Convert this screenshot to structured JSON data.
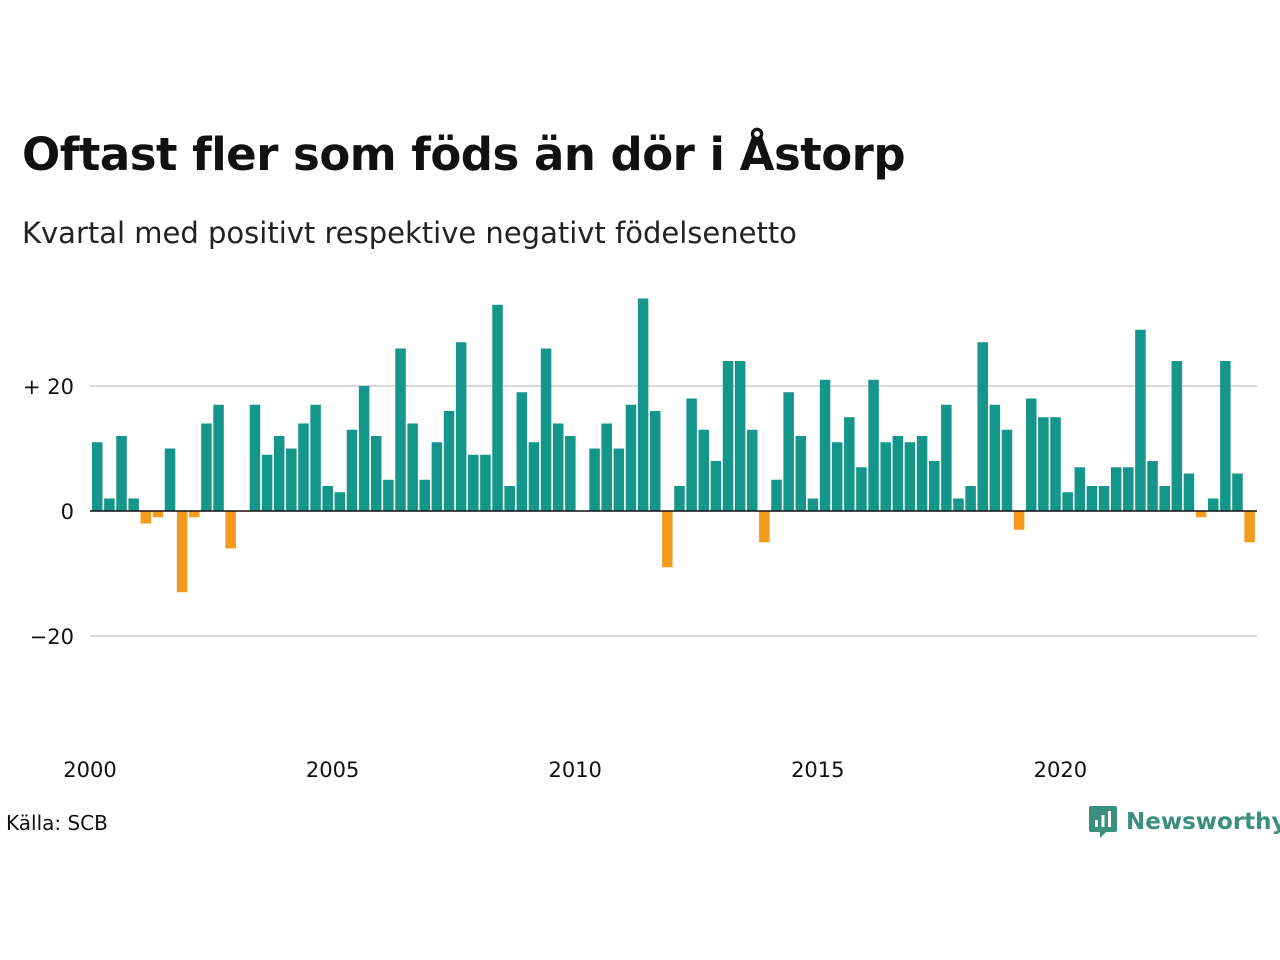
{
  "title": "Oftast fler som föds än dör i Åstorp",
  "subtitle": "Kvartal med positivt respektive negativt födelsenetto",
  "source": "Källa: SCB",
  "logo": {
    "text": "Newsworthy",
    "color": "#3a8f80"
  },
  "colors": {
    "positive": "#14968a",
    "negative": "#f59b1b",
    "grid": "#d9d9d9",
    "zero": "#111111"
  },
  "chart_data": {
    "type": "bar",
    "title": "Oftast fler som föds än dör i Åstorp",
    "subtitle": "Kvartal med positivt respektive negativt födelsenetto",
    "xlabel": "",
    "ylabel": "",
    "ylim": [
      -36,
      36
    ],
    "y_ticks": [
      {
        "value": 20,
        "label": "+ 20"
      },
      {
        "value": 0,
        "label": "0"
      },
      {
        "value": -20,
        "label": "−20"
      }
    ],
    "x_ticks": [
      {
        "year": 2000,
        "label": "2000"
      },
      {
        "year": 2005,
        "label": "2005"
      },
      {
        "year": 2010,
        "label": "2010"
      },
      {
        "year": 2015,
        "label": "2015"
      },
      {
        "year": 2020,
        "label": "2020"
      }
    ],
    "start_year": 2000,
    "grid": true,
    "values": [
      11,
      2,
      12,
      2,
      -2,
      -1,
      10,
      -13,
      -1,
      14,
      17,
      -6,
      0,
      17,
      9,
      12,
      10,
      14,
      17,
      4,
      3,
      13,
      20,
      12,
      5,
      26,
      14,
      5,
      11,
      16,
      27,
      9,
      9,
      33,
      4,
      19,
      11,
      26,
      14,
      12,
      0,
      10,
      14,
      10,
      17,
      34,
      16,
      -9,
      4,
      18,
      13,
      8,
      24,
      24,
      13,
      -5,
      5,
      19,
      12,
      2,
      21,
      11,
      15,
      7,
      21,
      11,
      12,
      11,
      12,
      8,
      17,
      2,
      4,
      27,
      17,
      13,
      -3,
      18,
      15,
      15,
      3,
      7,
      4,
      4,
      7,
      7,
      29,
      8,
      4,
      24,
      6,
      -1,
      2,
      24,
      6,
      -5
    ]
  }
}
